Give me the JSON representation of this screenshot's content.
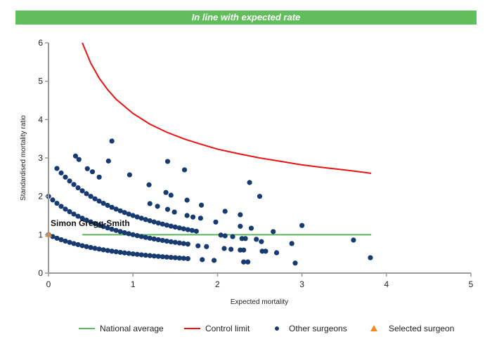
{
  "banner": {
    "text": "In line with expected rate"
  },
  "chart_data": {
    "type": "scatter",
    "xlabel": "Expected mortality",
    "ylabel": "Standardised mortality ratio",
    "xlim": [
      0,
      5
    ],
    "ylim": [
      0,
      6
    ],
    "xticks": [
      "0",
      "1",
      "2",
      "3",
      "4",
      "5"
    ],
    "yticks": [
      "0",
      "1",
      "2",
      "3",
      "4",
      "5",
      "6"
    ],
    "grid": false,
    "legend_position": "bottom-right",
    "colors": {
      "national_average": "#5cb85c",
      "control_limit": "#ee1111",
      "other_surgeons": "#173a70",
      "selected_surgeon": "#f08a1c",
      "banner": "#62bd5c"
    },
    "series": [
      {
        "name": "National average",
        "kind": "line",
        "points": [
          [
            0.4,
            1
          ],
          [
            3.82,
            1
          ]
        ]
      },
      {
        "name": "Control limit",
        "kind": "line",
        "points": [
          [
            0.4,
            6.0
          ],
          [
            0.5,
            5.47
          ],
          [
            0.6,
            5.08
          ],
          [
            0.7,
            4.78
          ],
          [
            0.8,
            4.53
          ],
          [
            1.0,
            4.16
          ],
          [
            1.2,
            3.88
          ],
          [
            1.4,
            3.67
          ],
          [
            1.6,
            3.5
          ],
          [
            1.8,
            3.36
          ],
          [
            2.0,
            3.23
          ],
          [
            2.25,
            3.11
          ],
          [
            2.5,
            3.0
          ],
          [
            2.75,
            2.91
          ],
          [
            3.0,
            2.82
          ],
          [
            3.25,
            2.75
          ],
          [
            3.5,
            2.69
          ],
          [
            3.82,
            2.6
          ]
        ]
      },
      {
        "name": "Other surgeons",
        "kind": "points",
        "points": [
          [
            0,
            1.0
          ],
          [
            0.05,
            0.952
          ],
          [
            0.1,
            0.909
          ],
          [
            0.15,
            0.87
          ],
          [
            0.2,
            0.833
          ],
          [
            0.25,
            0.8
          ],
          [
            0.3,
            0.769
          ],
          [
            0.35,
            0.741
          ],
          [
            0.4,
            0.714
          ],
          [
            0.45,
            0.69
          ],
          [
            0.5,
            0.667
          ],
          [
            0.55,
            0.645
          ],
          [
            0.6,
            0.625
          ],
          [
            0.65,
            0.606
          ],
          [
            0.7,
            0.588
          ],
          [
            0.75,
            0.571
          ],
          [
            0.8,
            0.556
          ],
          [
            0.85,
            0.541
          ],
          [
            0.9,
            0.526
          ],
          [
            0.95,
            0.513
          ],
          [
            1.0,
            0.5
          ],
          [
            1.05,
            0.488
          ],
          [
            1.1,
            0.476
          ],
          [
            1.15,
            0.465
          ],
          [
            1.2,
            0.455
          ],
          [
            1.25,
            0.444
          ],
          [
            1.3,
            0.435
          ],
          [
            1.35,
            0.426
          ],
          [
            1.4,
            0.417
          ],
          [
            1.45,
            0.408
          ],
          [
            1.5,
            0.4
          ],
          [
            1.55,
            0.392
          ],
          [
            1.6,
            0.385
          ],
          [
            1.65,
            0.377
          ],
          [
            0,
            2.0
          ],
          [
            0.05,
            1.905
          ],
          [
            0.1,
            1.818
          ],
          [
            0.15,
            1.739
          ],
          [
            0.2,
            1.667
          ],
          [
            0.25,
            1.6
          ],
          [
            0.3,
            1.538
          ],
          [
            0.35,
            1.481
          ],
          [
            0.4,
            1.429
          ],
          [
            0.45,
            1.379
          ],
          [
            0.5,
            1.333
          ],
          [
            0.55,
            1.29
          ],
          [
            0.6,
            1.25
          ],
          [
            0.65,
            1.212
          ],
          [
            0.7,
            1.176
          ],
          [
            0.75,
            1.143
          ],
          [
            0.8,
            1.111
          ],
          [
            0.85,
            1.081
          ],
          [
            0.9,
            1.053
          ],
          [
            0.95,
            1.026
          ],
          [
            1.0,
            1.0
          ],
          [
            1.05,
            0.976
          ],
          [
            1.1,
            0.952
          ],
          [
            1.15,
            0.93
          ],
          [
            1.2,
            0.909
          ],
          [
            1.25,
            0.889
          ],
          [
            1.3,
            0.87
          ],
          [
            1.35,
            0.851
          ],
          [
            1.4,
            0.833
          ],
          [
            1.45,
            0.816
          ],
          [
            1.5,
            0.8
          ],
          [
            1.55,
            0.784
          ],
          [
            1.6,
            0.769
          ],
          [
            1.65,
            0.755
          ],
          [
            0.1,
            2.727
          ],
          [
            0.15,
            2.609
          ],
          [
            0.2,
            2.5
          ],
          [
            0.25,
            2.4
          ],
          [
            0.3,
            2.308
          ],
          [
            0.35,
            2.222
          ],
          [
            0.4,
            2.143
          ],
          [
            0.45,
            2.069
          ],
          [
            0.5,
            2.0
          ],
          [
            0.55,
            1.935
          ],
          [
            0.6,
            1.875
          ],
          [
            0.65,
            1.818
          ],
          [
            0.7,
            1.765
          ],
          [
            0.75,
            1.714
          ],
          [
            0.8,
            1.667
          ],
          [
            0.85,
            1.622
          ],
          [
            0.9,
            1.579
          ],
          [
            0.95,
            1.538
          ],
          [
            1.0,
            1.5
          ],
          [
            1.05,
            1.463
          ],
          [
            1.1,
            1.429
          ],
          [
            1.15,
            1.395
          ],
          [
            1.2,
            1.364
          ],
          [
            1.25,
            1.333
          ],
          [
            1.3,
            1.304
          ],
          [
            1.35,
            1.277
          ],
          [
            1.4,
            1.25
          ],
          [
            1.45,
            1.224
          ],
          [
            1.5,
            1.2
          ],
          [
            1.55,
            1.176
          ],
          [
            1.6,
            1.154
          ],
          [
            1.65,
            1.132
          ],
          [
            1.7,
            1.111
          ],
          [
            1.75,
            1.091
          ],
          [
            0.32,
            3.05
          ],
          [
            0.36,
            2.96
          ],
          [
            0.46,
            2.72
          ],
          [
            0.52,
            2.64
          ],
          [
            0.6,
            2.5
          ],
          [
            1.2,
            1.81
          ],
          [
            1.29,
            1.74
          ],
          [
            0.75,
            3.44
          ],
          [
            0.71,
            2.92
          ],
          [
            1.41,
            2.91
          ],
          [
            1.61,
            2.69
          ],
          [
            0.96,
            2.56
          ],
          [
            1.19,
            2.3
          ],
          [
            1.39,
            2.1
          ],
          [
            1.45,
            2.03
          ],
          [
            1.64,
            1.9
          ],
          [
            1.81,
            1.77
          ],
          [
            1.41,
            1.66
          ],
          [
            1.49,
            1.59
          ],
          [
            1.64,
            1.5
          ],
          [
            1.71,
            1.46
          ],
          [
            1.8,
            1.43
          ],
          [
            1.98,
            1.33
          ],
          [
            2.09,
            1.61
          ],
          [
            2.27,
            1.52
          ],
          [
            2.27,
            1.22
          ],
          [
            2.4,
            1.17
          ],
          [
            2.66,
            1.08
          ],
          [
            3.0,
            1.24
          ],
          [
            2.38,
            2.36
          ],
          [
            2.5,
            2.0
          ],
          [
            2.04,
            0.99
          ],
          [
            2.09,
            0.97
          ],
          [
            2.18,
            0.95
          ],
          [
            2.29,
            0.9
          ],
          [
            2.33,
            0.9
          ],
          [
            2.46,
            0.88
          ],
          [
            2.52,
            0.82
          ],
          [
            1.77,
            0.71
          ],
          [
            1.87,
            0.69
          ],
          [
            2.08,
            0.64
          ],
          [
            2.16,
            0.62
          ],
          [
            2.27,
            0.6
          ],
          [
            2.31,
            0.6
          ],
          [
            2.53,
            0.57
          ],
          [
            2.57,
            0.57
          ],
          [
            2.7,
            0.53
          ],
          [
            2.88,
            0.77
          ],
          [
            3.61,
            0.86
          ],
          [
            2.92,
            0.26
          ],
          [
            3.81,
            0.4
          ],
          [
            1.82,
            0.35
          ],
          [
            1.96,
            0.33
          ],
          [
            2.31,
            0.29
          ],
          [
            2.36,
            0.29
          ]
        ]
      },
      {
        "name": "Selected surgeon",
        "kind": "points",
        "points": [
          [
            0,
            1.0
          ]
        ],
        "label": "Simon Gregg-Smith"
      }
    ]
  }
}
